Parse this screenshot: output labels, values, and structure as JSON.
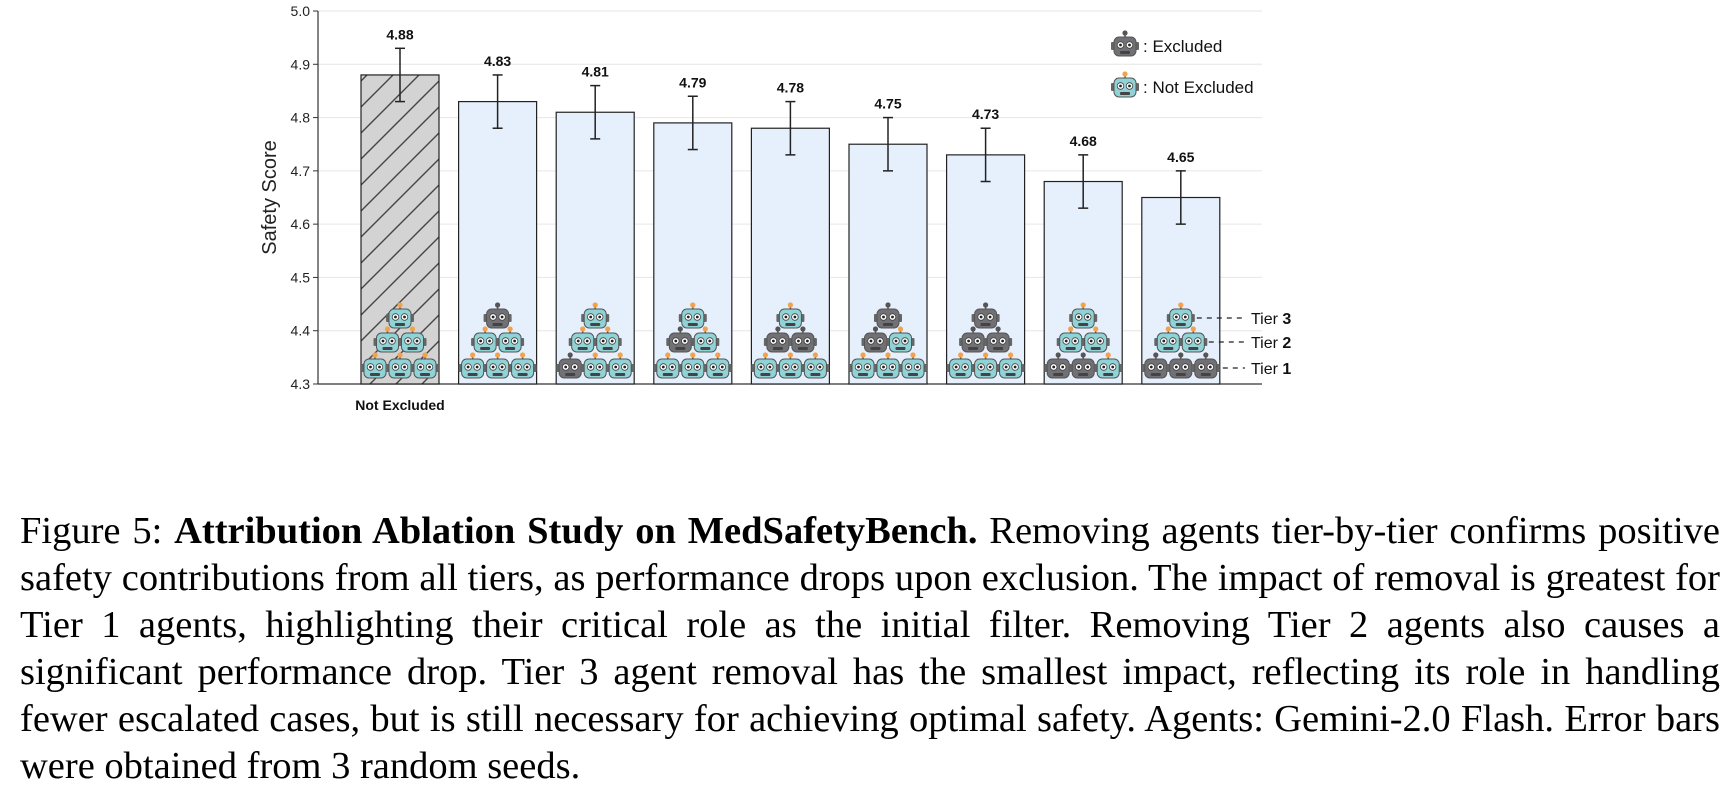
{
  "chart_data": {
    "type": "bar",
    "ylabel": "Safety Score",
    "ylim": [
      4.3,
      5.0
    ],
    "yticks": [
      "4.3",
      "4.4",
      "4.5",
      "4.6",
      "4.7",
      "4.8",
      "4.9",
      "5.0"
    ],
    "grid": true,
    "categories": [
      "Not Excluded",
      "",
      "",
      "",
      "",
      "",
      "",
      "",
      ""
    ],
    "values": [
      4.88,
      4.83,
      4.81,
      4.79,
      4.78,
      4.75,
      4.73,
      4.68,
      4.65
    ],
    "value_labels": [
      "4.88",
      "4.83",
      "4.81",
      "4.79",
      "4.78",
      "4.75",
      "4.73",
      "4.68",
      "4.65"
    ],
    "error": [
      0.05,
      0.05,
      0.05,
      0.05,
      0.05,
      0.05,
      0.05,
      0.05,
      0.05
    ],
    "tiers": [
      {
        "tier3": [
          "N"
        ],
        "tier2": [
          "N",
          "N"
        ],
        "tier1": [
          "N",
          "N",
          "N"
        ]
      },
      {
        "tier3": [
          "E"
        ],
        "tier2": [
          "N",
          "N"
        ],
        "tier1": [
          "N",
          "N",
          "N"
        ]
      },
      {
        "tier3": [
          "N"
        ],
        "tier2": [
          "N",
          "N"
        ],
        "tier1": [
          "E",
          "N",
          "N"
        ]
      },
      {
        "tier3": [
          "N"
        ],
        "tier2": [
          "E",
          "N"
        ],
        "tier1": [
          "N",
          "N",
          "N"
        ]
      },
      {
        "tier3": [
          "N"
        ],
        "tier2": [
          "E",
          "E"
        ],
        "tier1": [
          "N",
          "N",
          "N"
        ]
      },
      {
        "tier3": [
          "E"
        ],
        "tier2": [
          "E",
          "N"
        ],
        "tier1": [
          "N",
          "N",
          "N"
        ]
      },
      {
        "tier3": [
          "E"
        ],
        "tier2": [
          "E",
          "E"
        ],
        "tier1": [
          "N",
          "N",
          "N"
        ]
      },
      {
        "tier3": [
          "N"
        ],
        "tier2": [
          "N",
          "N"
        ],
        "tier1": [
          "E",
          "E",
          "N"
        ]
      },
      {
        "tier3": [
          "N"
        ],
        "tier2": [
          "N",
          "N"
        ],
        "tier1": [
          "E",
          "E",
          "E"
        ]
      }
    ],
    "legend": {
      "placement": "top-right",
      "entries": [
        {
          "key": "E",
          "label": "Excluded"
        },
        {
          "key": "N",
          "label": "Not Excluded"
        }
      ]
    },
    "tier_labels": [
      {
        "prefix": "Tier ",
        "number": "3"
      },
      {
        "prefix": "Tier ",
        "number": "2"
      },
      {
        "prefix": "Tier ",
        "number": "1"
      }
    ],
    "colors": {
      "baseline_fill": "#d3d3d3",
      "bar_fill": "#e6effc",
      "bar_stroke": "#222222",
      "grid": "#e6e6e6",
      "robot_included": "#8fd3d6",
      "robot_excluded": "#707075",
      "antenna_included": "#f2a24a"
    }
  },
  "caption": {
    "label": "Figure 5: ",
    "title": "Attribution Ablation Study on MedSafetyBench.",
    "body": " Removing agents tier-by-tier confirms positive safety contributions from all tiers, as performance drops upon exclusion. The impact of removal is greatest for Tier 1 agents, highlighting their critical role as the initial filter. Removing Tier 2 agents also causes a significant performance drop. Tier 3 agent removal has the smallest impact, reflecting its role in handling fewer escalated cases, but is still necessary for achieving optimal safety. Agents: Gemini-2.0 Flash. Error bars were obtained from 3 random seeds."
  }
}
